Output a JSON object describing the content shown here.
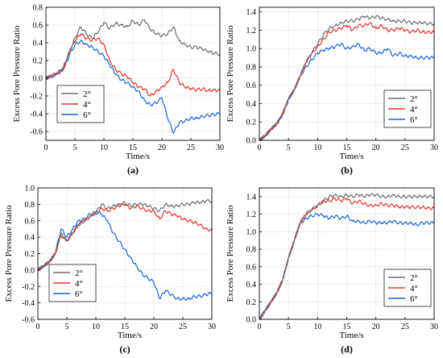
{
  "figure": {
    "colors": {
      "2°": "#6d6d6d",
      "4°": "#e8312f",
      "6°": "#1565d8"
    }
  },
  "chart_data": [
    {
      "type": "line",
      "panel_label": "(a)",
      "xlabel": "Time/s",
      "ylabel": "Excess Pore Pressure Ratio",
      "xlim": [
        0,
        30
      ],
      "ylim": [
        -0.7,
        0.8
      ],
      "xticks": [
        0,
        5,
        10,
        15,
        20,
        25,
        30
      ],
      "yticks": [
        -0.6,
        -0.4,
        -0.2,
        0.0,
        0.2,
        0.4,
        0.6,
        0.8
      ],
      "ytick_labels": [
        "-0.6",
        "-0.4",
        "-0.2",
        "0.0",
        "0.2",
        "0.4",
        "0.6",
        "0.8"
      ],
      "legend": "bottom-left",
      "x": [
        0,
        1,
        2,
        3,
        4,
        5,
        6,
        7,
        8,
        9,
        10,
        11,
        12,
        13,
        14,
        15,
        16,
        17,
        18,
        19,
        20,
        21,
        22,
        23,
        24,
        25,
        26,
        27,
        28,
        29,
        30
      ],
      "series": [
        {
          "name": "2°",
          "values": [
            0,
            0.03,
            0.06,
            0.12,
            0.3,
            0.45,
            0.58,
            0.5,
            0.45,
            0.52,
            0.63,
            0.56,
            0.62,
            0.6,
            0.58,
            0.65,
            0.6,
            0.66,
            0.55,
            0.5,
            0.48,
            0.5,
            0.58,
            0.42,
            0.38,
            0.35,
            0.35,
            0.33,
            0.3,
            0.28,
            0.27
          ]
        },
        {
          "name": "4°",
          "values": [
            0,
            0.03,
            0.05,
            0.1,
            0.28,
            0.42,
            0.5,
            0.45,
            0.43,
            0.45,
            0.38,
            0.2,
            0.1,
            0.05,
            0.02,
            -0.05,
            -0.1,
            -0.12,
            -0.2,
            -0.15,
            -0.1,
            -0.05,
            0.1,
            -0.05,
            -0.1,
            -0.12,
            -0.13,
            -0.12,
            -0.14,
            -0.13,
            -0.14
          ]
        },
        {
          "name": "6°",
          "values": [
            0,
            0.02,
            0.05,
            0.1,
            0.25,
            0.38,
            0.42,
            0.38,
            0.35,
            0.3,
            0.25,
            0.15,
            0.05,
            -0.02,
            -0.05,
            -0.1,
            -0.15,
            -0.25,
            -0.3,
            -0.28,
            -0.22,
            -0.45,
            -0.62,
            -0.5,
            -0.48,
            -0.45,
            -0.45,
            -0.43,
            -0.42,
            -0.41,
            -0.4
          ]
        }
      ]
    },
    {
      "type": "line",
      "panel_label": "(b)",
      "xlabel": "Time/s",
      "ylabel": "Excess Pore Pressure Ratio",
      "xlim": [
        0,
        30
      ],
      "ylim": [
        0,
        1.45
      ],
      "xticks": [
        0,
        5,
        10,
        15,
        20,
        25,
        30
      ],
      "yticks": [
        0.0,
        0.2,
        0.4,
        0.6,
        0.8,
        1.0,
        1.2,
        1.4
      ],
      "ytick_labels": [
        "0.0",
        "0.2",
        "0.4",
        "0.6",
        "0.8",
        "1.0",
        "1.2",
        "1.4"
      ],
      "legend": "bottom-right",
      "x": [
        0,
        1,
        2,
        3,
        4,
        5,
        6,
        7,
        8,
        9,
        10,
        11,
        12,
        13,
        14,
        15,
        16,
        17,
        18,
        19,
        20,
        21,
        22,
        23,
        24,
        25,
        26,
        27,
        28,
        29,
        30
      ],
      "series": [
        {
          "name": "2°",
          "values": [
            0,
            0.05,
            0.12,
            0.18,
            0.3,
            0.45,
            0.55,
            0.7,
            0.85,
            0.95,
            1.05,
            1.15,
            1.22,
            1.25,
            1.28,
            1.3,
            1.3,
            1.32,
            1.35,
            1.33,
            1.35,
            1.33,
            1.32,
            1.3,
            1.3,
            1.3,
            1.28,
            1.28,
            1.28,
            1.27,
            1.27
          ]
        },
        {
          "name": "4°",
          "values": [
            0,
            0.05,
            0.12,
            0.18,
            0.28,
            0.45,
            0.55,
            0.7,
            0.85,
            0.95,
            1.02,
            1.1,
            1.18,
            1.2,
            1.22,
            1.25,
            1.2,
            1.25,
            1.25,
            1.28,
            1.22,
            1.25,
            1.2,
            1.2,
            1.22,
            1.2,
            1.18,
            1.2,
            1.18,
            1.18,
            1.18
          ]
        },
        {
          "name": "6°",
          "values": [
            0,
            0.05,
            0.12,
            0.18,
            0.28,
            0.45,
            0.55,
            0.7,
            0.8,
            0.88,
            0.95,
            0.98,
            1.0,
            1.02,
            1.05,
            1.0,
            1.02,
            1.05,
            0.98,
            1.0,
            0.95,
            0.95,
            1.0,
            0.92,
            0.95,
            0.92,
            0.92,
            0.9,
            0.9,
            0.9,
            0.9
          ]
        }
      ]
    },
    {
      "type": "line",
      "panel_label": "(c)",
      "xlabel": "Time/s",
      "ylabel": "Excess Pore Pressure Ratio",
      "xlim": [
        0,
        30
      ],
      "ylim": [
        -0.6,
        1.0
      ],
      "xticks": [
        0,
        5,
        10,
        15,
        20,
        25,
        30
      ],
      "yticks": [
        -0.6,
        -0.4,
        -0.2,
        0.0,
        0.2,
        0.4,
        0.6,
        0.8,
        1.0
      ],
      "ytick_labels": [
        "-0.6",
        "-0.4",
        "-0.2",
        "0.0",
        "0.2",
        "0.4",
        "0.6",
        "0.8",
        "1.0"
      ],
      "legend": "bottom-left",
      "x": [
        0,
        1,
        2,
        3,
        4,
        5,
        6,
        7,
        8,
        9,
        10,
        11,
        12,
        13,
        14,
        15,
        16,
        17,
        18,
        19,
        20,
        21,
        22,
        23,
        24,
        25,
        26,
        27,
        28,
        29,
        30
      ],
      "series": [
        {
          "name": "2°",
          "values": [
            0,
            0.05,
            0.1,
            0.2,
            0.45,
            0.35,
            0.45,
            0.55,
            0.6,
            0.65,
            0.7,
            0.8,
            0.75,
            0.78,
            0.8,
            0.82,
            0.78,
            0.8,
            0.8,
            0.78,
            0.75,
            0.72,
            0.8,
            0.78,
            0.78,
            0.8,
            0.8,
            0.82,
            0.82,
            0.84,
            0.84
          ]
        },
        {
          "name": "4°",
          "values": [
            0,
            0.05,
            0.1,
            0.2,
            0.42,
            0.35,
            0.45,
            0.55,
            0.6,
            0.65,
            0.7,
            0.75,
            0.72,
            0.75,
            0.78,
            0.8,
            0.75,
            0.78,
            0.75,
            0.72,
            0.72,
            0.62,
            0.72,
            0.68,
            0.66,
            0.62,
            0.6,
            0.58,
            0.55,
            0.5,
            0.48
          ]
        },
        {
          "name": "6°",
          "values": [
            0,
            0.05,
            0.1,
            0.2,
            0.5,
            0.4,
            0.5,
            0.6,
            0.62,
            0.68,
            0.7,
            0.68,
            0.6,
            0.45,
            0.35,
            0.25,
            0.15,
            0.05,
            -0.05,
            -0.1,
            -0.15,
            -0.35,
            -0.25,
            -0.3,
            -0.35,
            -0.35,
            -0.35,
            -0.32,
            -0.32,
            -0.3,
            -0.28
          ]
        }
      ]
    },
    {
      "type": "line",
      "panel_label": "(d)",
      "xlabel": "Time/s",
      "ylabel": "Excess Pore Pressure Ratio",
      "xlim": [
        0,
        30
      ],
      "ylim": [
        0,
        1.5
      ],
      "xticks": [
        0,
        5,
        10,
        15,
        20,
        25,
        30
      ],
      "yticks": [
        0.0,
        0.2,
        0.4,
        0.6,
        0.8,
        1.0,
        1.2,
        1.4
      ],
      "ytick_labels": [
        "0.0",
        "0.2",
        "0.4",
        "0.6",
        "0.8",
        "1.0",
        "1.2",
        "1.4"
      ],
      "legend": "bottom-right",
      "x": [
        0,
        1,
        2,
        3,
        4,
        5,
        6,
        7,
        8,
        9,
        10,
        11,
        12,
        13,
        14,
        15,
        16,
        17,
        18,
        19,
        20,
        21,
        22,
        23,
        24,
        25,
        26,
        27,
        28,
        29,
        30
      ],
      "series": [
        {
          "name": "2°",
          "values": [
            0,
            0.1,
            0.2,
            0.3,
            0.45,
            0.7,
            0.9,
            1.1,
            1.2,
            1.25,
            1.3,
            1.35,
            1.4,
            1.42,
            1.4,
            1.42,
            1.4,
            1.42,
            1.4,
            1.42,
            1.42,
            1.4,
            1.4,
            1.42,
            1.4,
            1.4,
            1.4,
            1.4,
            1.4,
            1.4,
            1.4
          ]
        },
        {
          "name": "4°",
          "values": [
            0,
            0.1,
            0.2,
            0.3,
            0.45,
            0.7,
            0.9,
            1.1,
            1.2,
            1.25,
            1.3,
            1.35,
            1.35,
            1.38,
            1.35,
            1.38,
            1.32,
            1.35,
            1.32,
            1.3,
            1.3,
            1.32,
            1.3,
            1.3,
            1.28,
            1.28,
            1.28,
            1.28,
            1.28,
            1.27,
            1.27
          ]
        },
        {
          "name": "6°",
          "values": [
            0,
            0.1,
            0.2,
            0.3,
            0.45,
            0.7,
            0.9,
            1.1,
            1.15,
            1.18,
            1.2,
            1.18,
            1.15,
            1.18,
            1.15,
            1.18,
            1.12,
            1.12,
            1.1,
            1.12,
            1.1,
            1.1,
            1.1,
            1.12,
            1.1,
            1.1,
            1.1,
            1.08,
            1.1,
            1.1,
            1.1
          ]
        }
      ]
    }
  ]
}
